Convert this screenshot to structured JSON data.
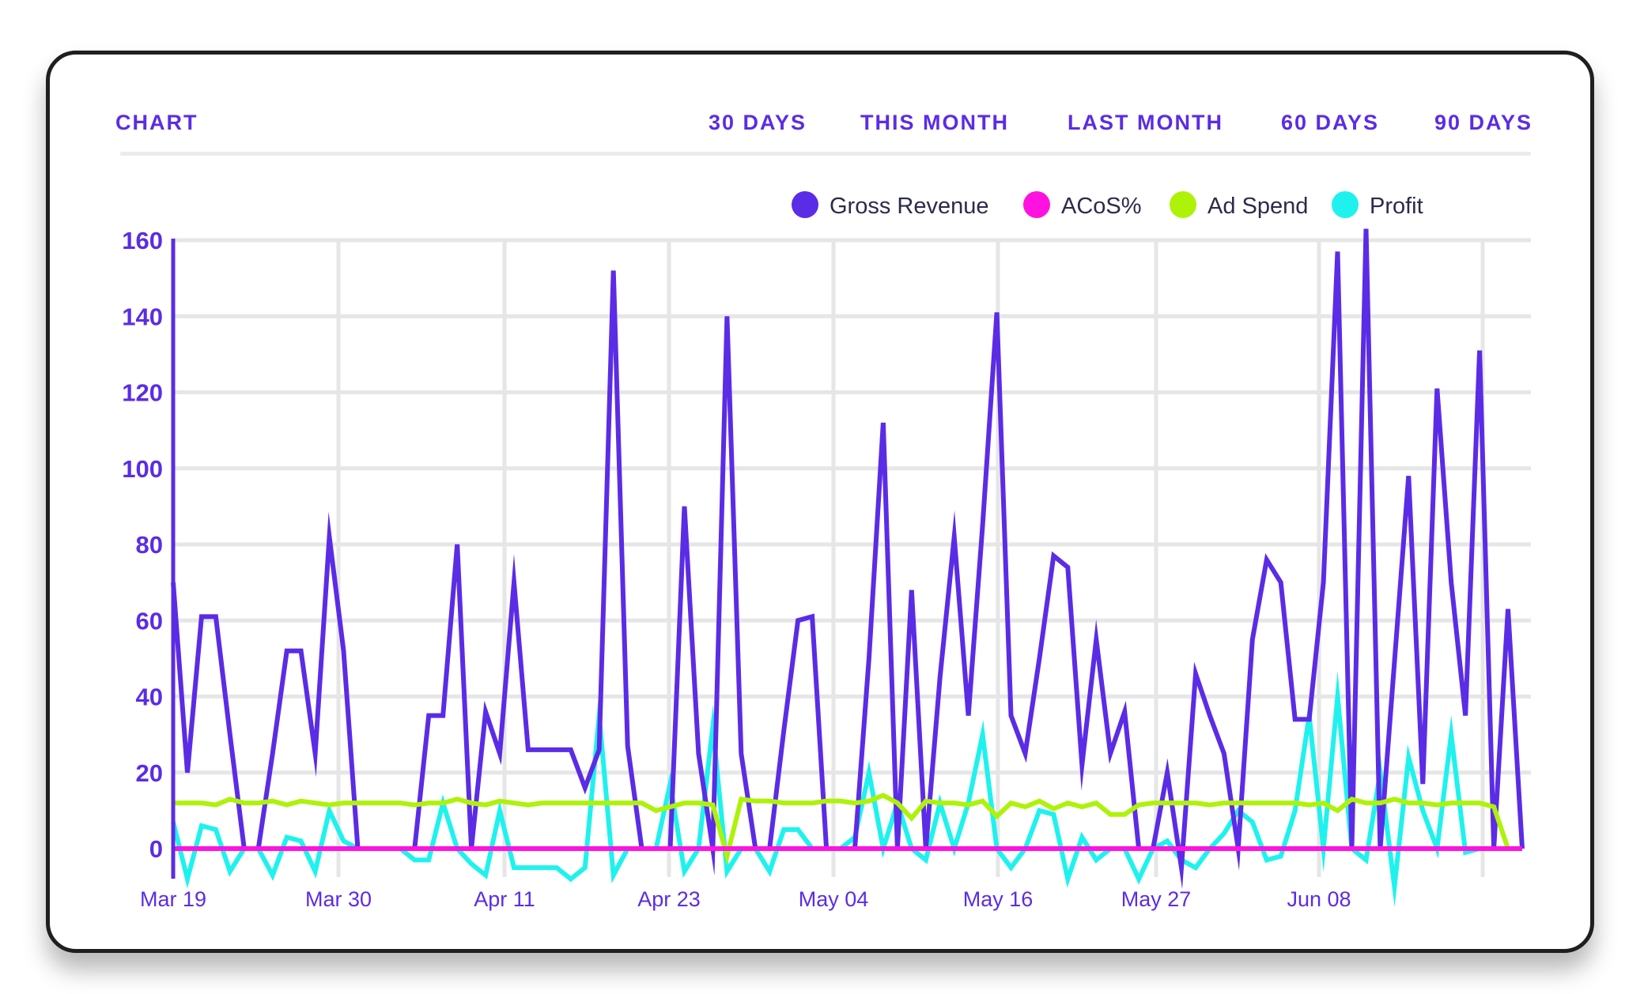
{
  "nav": {
    "title": "CHART",
    "tabs": [
      "30 DAYS",
      "THIS MONTH",
      "LAST MONTH",
      "60 DAYS",
      "90 DAYS"
    ]
  },
  "colors": {
    "accent": "#5b2ce6",
    "gross_revenue": "#5b2ce6",
    "acos": "#ff12e0",
    "ad_spend": "#aef20a",
    "profit": "#1ff2ee",
    "grid": "#e6e6e6"
  },
  "chart_data": {
    "type": "line",
    "title": "",
    "xlabel": "",
    "ylabel": "",
    "ylim": [
      -8,
      160
    ],
    "yticks": [
      0,
      20,
      40,
      60,
      80,
      100,
      120,
      140,
      160
    ],
    "x_start": "Mar 19",
    "x_tick_labels": [
      "Mar 19",
      "Mar 30",
      "Apr 11",
      "Apr 23",
      "May 04",
      "May 16",
      "May 27",
      "Jun 08"
    ],
    "grid": true,
    "legend_position": "top-right",
    "series": [
      {
        "name": "Gross Revenue",
        "color": "#5b2ce6",
        "values": [
          70,
          20,
          61,
          61,
          30,
          0,
          0,
          25,
          52,
          52,
          25,
          82,
          52,
          0,
          0,
          0,
          0,
          0,
          35,
          35,
          80,
          0,
          36,
          25,
          70,
          26,
          26,
          26,
          26,
          16,
          26,
          152,
          27,
          0,
          0,
          0,
          90,
          25,
          0,
          140,
          25,
          0,
          0,
          31,
          60,
          61,
          0,
          0,
          0,
          50,
          112,
          0,
          68,
          0,
          45,
          82,
          35,
          85,
          141,
          35,
          25,
          50,
          77,
          74,
          22,
          55,
          25,
          36,
          0,
          0,
          20,
          -5,
          46,
          35,
          25,
          0,
          55,
          76,
          70,
          34,
          34,
          70,
          157,
          0,
          163,
          0,
          49,
          98,
          17,
          121,
          70,
          35,
          131,
          0,
          63,
          0
        ]
      },
      {
        "name": "ACoS%",
        "color": "#ff12e0",
        "values": [
          0,
          0,
          0,
          0,
          0,
          0,
          0,
          0,
          0,
          0,
          0,
          0,
          0,
          0,
          0,
          0,
          0,
          0,
          0,
          0,
          0,
          0,
          0,
          0,
          0,
          0,
          0,
          0,
          0,
          0,
          0,
          0,
          0,
          0,
          0,
          0,
          0,
          0,
          0,
          0,
          0,
          0,
          0,
          0,
          0,
          0,
          0,
          0,
          0,
          0,
          0,
          0,
          0,
          0,
          0,
          0,
          0,
          0,
          0,
          0,
          0,
          0,
          0,
          0,
          0,
          0,
          0,
          0,
          0,
          0,
          0,
          0,
          0,
          0,
          0,
          0,
          0,
          0,
          0,
          0,
          0,
          0,
          0,
          0,
          0,
          0,
          0,
          0,
          0,
          0,
          0,
          0,
          0,
          0,
          0,
          0
        ]
      },
      {
        "name": "Ad Spend",
        "color": "#aef20a",
        "values": [
          12,
          12,
          12,
          11.5,
          13,
          12,
          12,
          12.5,
          11.5,
          12.5,
          12,
          11.5,
          12,
          12,
          12,
          12,
          12,
          11.5,
          12,
          12,
          13,
          12,
          11.5,
          12.5,
          12,
          11.5,
          12,
          12,
          12,
          12,
          12,
          12,
          12,
          12,
          10,
          11,
          12,
          12,
          11.5,
          -2,
          13,
          12.5,
          12.5,
          12,
          12,
          12,
          12.5,
          12.5,
          12,
          12.5,
          14,
          12,
          8,
          12.5,
          12,
          12,
          11.5,
          12.5,
          8.5,
          12,
          11,
          12.5,
          10.5,
          12,
          11,
          12,
          9,
          9,
          11.5,
          12,
          12,
          12,
          12,
          11.5,
          12,
          12,
          12,
          12,
          12,
          12,
          11.5,
          12,
          10,
          13,
          12,
          12,
          13,
          12,
          12,
          11.5,
          12,
          12,
          12,
          11,
          0,
          0
        ]
      },
      {
        "name": "Profit",
        "color": "#1ff2ee",
        "values": [
          7,
          -8,
          6,
          5,
          -6,
          0,
          0,
          -7,
          3,
          2,
          -6,
          10,
          2,
          0,
          0,
          0,
          0,
          -3,
          -3,
          12,
          0,
          -4,
          -7,
          10,
          -5,
          -5,
          -5,
          -5,
          -8,
          -5,
          35,
          -7,
          0,
          0,
          0,
          17,
          -6,
          0,
          32,
          -6,
          0,
          0,
          -6,
          5,
          5,
          0,
          0,
          0,
          3,
          20,
          0,
          12,
          0,
          -3,
          12,
          0,
          12,
          30,
          0,
          -5,
          0,
          10,
          9,
          -8,
          3,
          -3,
          0,
          0,
          -8,
          0,
          2,
          -3,
          -5,
          0,
          4,
          10,
          7,
          -3,
          -2,
          10,
          35,
          0,
          40,
          0,
          -3,
          20,
          -10,
          24,
          10,
          0,
          30,
          -1,
          0,
          0,
          0,
          0
        ]
      }
    ]
  }
}
